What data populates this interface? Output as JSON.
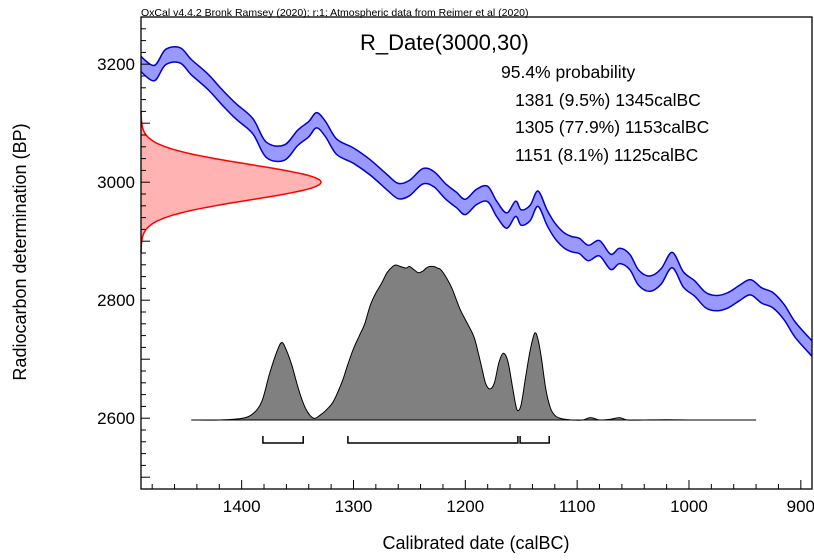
{
  "chart_data": {
    "type": "area",
    "credit": "OxCal v4.4.2 Bronk Ramsey (2020); r:1; Atmospheric data from Reimer et al (2020)",
    "title": "R_Date(3000,30)",
    "xlabel": "Calibrated date (calBC)",
    "ylabel": "Radiocarbon determination (BP)",
    "xlim": [
      1490,
      890
    ],
    "ylim": [
      2480,
      3280
    ],
    "x_ticks": [
      1400,
      1300,
      1200,
      1100,
      1000,
      900
    ],
    "y_ticks": [
      2600,
      2800,
      3000,
      3200
    ],
    "grid": false,
    "annotation": {
      "probability_label": "95.4% probability",
      "ranges": [
        "1381 (9.5%) 1345calBC",
        "1305 (77.9%) 1153calBC",
        "1151 (8.1%) 1125calBC"
      ]
    },
    "ranges_95": [
      {
        "from": 1381,
        "to": 1345
      },
      {
        "from": 1305,
        "to": 1153
      },
      {
        "from": 1151,
        "to": 1125
      }
    ],
    "measurement": {
      "mean": 3000,
      "sd": 30,
      "color": "#ff0000",
      "fill": "#ffb3b3"
    },
    "calibration_curve": {
      "color": "#0000cc",
      "fill": "#9999ff",
      "x": [
        1490,
        1478,
        1468,
        1455,
        1445,
        1430,
        1418,
        1405,
        1390,
        1378,
        1362,
        1350,
        1340,
        1333,
        1325,
        1315,
        1300,
        1285,
        1270,
        1260,
        1250,
        1238,
        1228,
        1218,
        1208,
        1200,
        1190,
        1180,
        1172,
        1163,
        1155,
        1150,
        1142,
        1135,
        1127,
        1120,
        1112,
        1105,
        1098,
        1090,
        1080,
        1070,
        1062,
        1053,
        1045,
        1035,
        1025,
        1015,
        1005,
        995,
        985,
        975,
        965,
        955,
        945,
        935,
        925,
        915,
        905,
        890
      ],
      "mid": [
        3200,
        3185,
        3212,
        3215,
        3195,
        3170,
        3145,
        3120,
        3095,
        3055,
        3050,
        3075,
        3090,
        3105,
        3090,
        3060,
        3045,
        3025,
        3000,
        2985,
        2990,
        3010,
        3005,
        2985,
        2970,
        2958,
        2975,
        2980,
        2955,
        2935,
        2955,
        2940,
        2948,
        2972,
        2940,
        2918,
        2902,
        2895,
        2892,
        2880,
        2888,
        2865,
        2875,
        2865,
        2838,
        2828,
        2840,
        2868,
        2835,
        2820,
        2800,
        2795,
        2800,
        2812,
        2822,
        2808,
        2800,
        2780,
        2750,
        2718
      ],
      "halfwidth": 13
    },
    "calibrated_distribution": {
      "color": "#000000",
      "fill": "#808080",
      "baseline_from": 1445,
      "baseline_to": 940,
      "x": [
        1445,
        1420,
        1400,
        1390,
        1382,
        1375,
        1368,
        1364,
        1360,
        1355,
        1350,
        1345,
        1340,
        1335,
        1330,
        1325,
        1318,
        1310,
        1305,
        1300,
        1295,
        1290,
        1285,
        1280,
        1275,
        1270,
        1265,
        1262,
        1258,
        1253,
        1250,
        1246,
        1242,
        1238,
        1235,
        1232,
        1228,
        1225,
        1222,
        1218,
        1212,
        1205,
        1198,
        1192,
        1186,
        1182,
        1178,
        1174,
        1170,
        1166,
        1162,
        1158,
        1155,
        1153,
        1150,
        1146,
        1142,
        1138,
        1135,
        1132,
        1128,
        1124,
        1120,
        1115,
        1105,
        1095,
        1088,
        1080,
        1070,
        1062,
        1055,
        1040,
        1020,
        1000,
        980,
        940
      ],
      "density": [
        0.0,
        0.0,
        0.01,
        0.04,
        0.12,
        0.3,
        0.45,
        0.5,
        0.45,
        0.35,
        0.22,
        0.11,
        0.04,
        0.01,
        0.03,
        0.06,
        0.12,
        0.25,
        0.36,
        0.46,
        0.54,
        0.62,
        0.74,
        0.82,
        0.88,
        0.95,
        0.99,
        1.0,
        0.99,
        0.98,
        0.99,
        0.97,
        0.95,
        0.96,
        0.98,
        0.99,
        0.99,
        0.98,
        0.97,
        0.93,
        0.85,
        0.72,
        0.62,
        0.53,
        0.36,
        0.24,
        0.2,
        0.24,
        0.37,
        0.43,
        0.38,
        0.22,
        0.1,
        0.06,
        0.1,
        0.28,
        0.45,
        0.56,
        0.52,
        0.4,
        0.2,
        0.08,
        0.03,
        0.01,
        0.0,
        0.0,
        0.015,
        0.0,
        0.005,
        0.015,
        0.0,
        0.0,
        0.002,
        0.0,
        0.0,
        0.0
      ]
    }
  }
}
